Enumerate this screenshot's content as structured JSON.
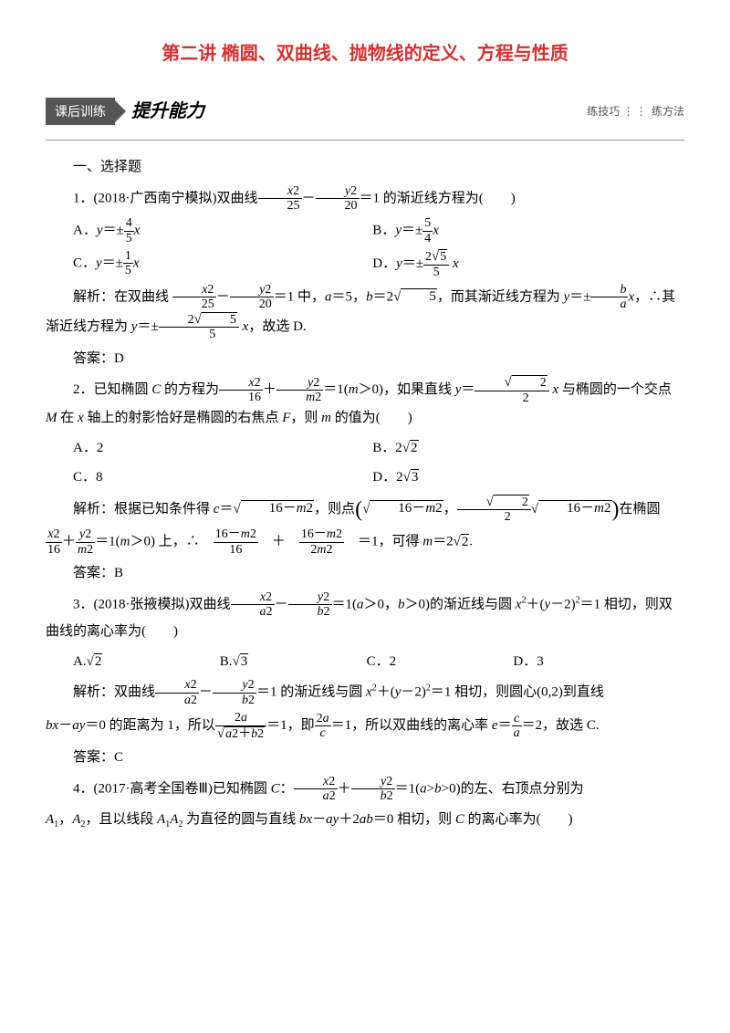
{
  "title": "第二讲 椭圆、双曲线、抛物线的定义、方程与性质",
  "banner": {
    "tag": "课后训练",
    "main": "提升能力",
    "right_a": "练技巧",
    "right_b": "练方法"
  },
  "section_heading": "一、选择题",
  "q1": {
    "stem_a": "1．(2018·广西南宁模拟)双曲线",
    "stem_b": "＝1 的渐近线方程为(　　)",
    "optA_pre": "A．",
    "optB_pre": "B．",
    "optC_pre": "C．",
    "optD_pre": "D．",
    "sol_a": "解析：在双曲线 ",
    "sol_b": "＝1 中，",
    "sol_c": "＝5，",
    "sol_d": "＝2",
    "sol_e": "，而其渐近线方程为 ",
    "sol_f": "，∴其渐近线方程为 ",
    "sol_g": "，故选 D.",
    "ans": "答案：D"
  },
  "q2": {
    "stem_a": "2．已知椭圆 ",
    "stem_b": " 的方程为",
    "stem_c": "＝1(",
    "stem_d": "＞0)，如果直线 ",
    "stem_e": " 与椭圆的一个交点 ",
    "stem_f": " 在 ",
    "stem_g": " 轴上的射影恰好是椭圆的右焦点 ",
    "stem_h": "，则 ",
    "stem_i": " 的值为(　　)",
    "optA": "A．2",
    "optB": "B．2",
    "optC": "C．8",
    "optD": "D．2",
    "sol_a": "解析：根据已知条件得 ",
    "sol_b": "，则点",
    "sol_c": "在椭圆",
    "sol_d": "＝1(",
    "sol_e": "＞0) 上，∴",
    "sol_f": "＝1，可得 ",
    "sol_g": "＝2",
    "ans": "答案：B"
  },
  "q3": {
    "stem_a": "3．(2018·张掖模拟)双曲线",
    "stem_b": "＝1(",
    "stem_c": "＞0，",
    "stem_d": "＞0)的渐近线与圆 ",
    "stem_e": "＋(",
    "stem_f": "－2)",
    "stem_g": "＝1 相切，则双曲线的离心率为(　　)",
    "optA": "A.",
    "optB": "B.",
    "optC": "C．2",
    "optD": "D．3",
    "sol_a": "解析：双曲线",
    "sol_b": "＝1 的渐近线与圆 ",
    "sol_c": "＋(",
    "sol_d": "－2)",
    "sol_e": "＝1 相切，则圆心(0,2)到直线",
    "sol_f": "＝0 的距离为 1，所以",
    "sol_g": "＝1，即",
    "sol_h": "＝1，所以双曲线的离心率 ",
    "sol_i": "＝2，故选 C.",
    "ans": "答案：C"
  },
  "q4": {
    "stem_a": "4．(2017·高考全国卷Ⅲ)已知椭圆 ",
    "stem_b": "：",
    "stem_c": "＝1(",
    "stem_d": ">",
    "stem_e": ">0)的左、右顶点分别为",
    "stem_f": "，",
    "stem_g": "，且以线段 ",
    "stem_h": " 为直径的圆与直线 ",
    "stem_i": "＋2",
    "stem_j": "＝0 相切，则 ",
    "stem_k": " 的离心率为(　　)"
  }
}
